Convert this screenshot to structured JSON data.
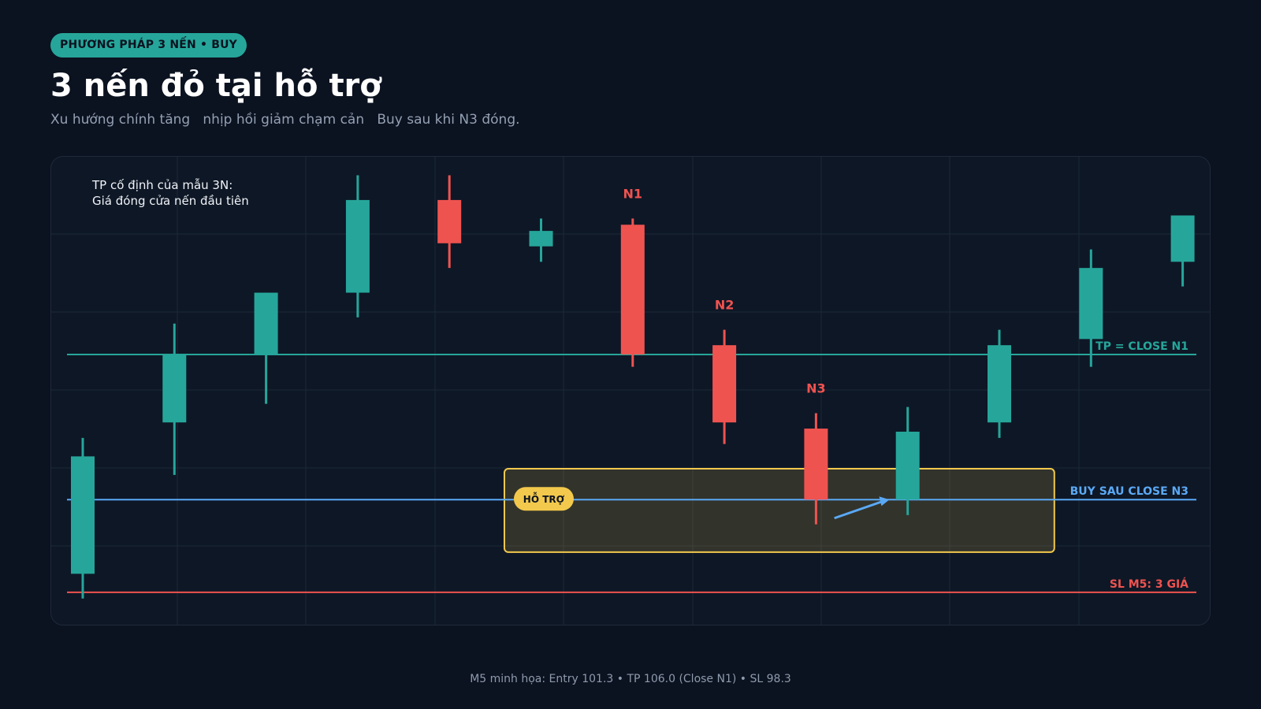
{
  "header": {
    "badge": "PHƯƠNG PHÁP 3 NẾN • BUY",
    "title": "3 nến đỏ tại hỗ trợ",
    "subtitle": "Xu hướng chính tăng   nhịp hồi giảm chạm cản   Buy sau khi N3 đóng."
  },
  "note": {
    "line1": "TP cố định của mẫu 3N:",
    "line2": "Giá đóng cửa nến đầu tiên"
  },
  "footer": "M5 minh họa: Entry 101.3 • TP 106.0 (Close N1) • SL 98.3",
  "colors": {
    "bull": "#26a69a",
    "bear": "#ef5350",
    "entry": "#5aa9f5",
    "support": "#f2c94c",
    "grid": "#1c2838"
  },
  "chart_data": {
    "type": "candlestick",
    "ylim": [
      97.2,
      112.4
    ],
    "grid": true,
    "candles": [
      {
        "open": 98.9,
        "high": 103.3,
        "low": 98.1,
        "close": 102.7
      },
      {
        "open": 103.8,
        "high": 107.0,
        "low": 102.1,
        "close": 106.0
      },
      {
        "open": 106.0,
        "high": 108.0,
        "low": 104.4,
        "close": 108.0
      },
      {
        "open": 108.0,
        "high": 111.8,
        "low": 107.2,
        "close": 111.0
      },
      {
        "open": 111.0,
        "high": 111.8,
        "low": 108.8,
        "close": 109.6
      },
      {
        "open": 109.5,
        "high": 110.4,
        "low": 109.0,
        "close": 110.0
      },
      {
        "open": 110.2,
        "high": 110.4,
        "low": 105.6,
        "close": 106.0,
        "label": "N1"
      },
      {
        "open": 106.3,
        "high": 106.8,
        "low": 103.1,
        "close": 103.8,
        "label": "N2"
      },
      {
        "open": 103.6,
        "high": 104.1,
        "low": 100.5,
        "close": 101.3,
        "label": "N3"
      },
      {
        "open": 101.3,
        "high": 104.3,
        "low": 100.8,
        "close": 103.5
      },
      {
        "open": 103.8,
        "high": 106.8,
        "low": 103.3,
        "close": 106.3
      },
      {
        "open": 106.5,
        "high": 109.4,
        "low": 105.6,
        "close": 108.8
      },
      {
        "open": 109.0,
        "high": 110.4,
        "low": 108.2,
        "close": 110.5
      }
    ],
    "levels": [
      {
        "name": "tp",
        "value": 106.0,
        "label": "TP = CLOSE N1"
      },
      {
        "name": "entry",
        "value": 101.3,
        "label": "BUY SAU CLOSE N3"
      },
      {
        "name": "sl",
        "value": 98.3,
        "label": "SL M5: 3 GIÁ"
      }
    ],
    "support_zone": {
      "low": 99.6,
      "high": 102.3,
      "label": "HỖ TRỢ",
      "from_candle": 4.6,
      "to_candle": 10.6
    },
    "arrow": {
      "from_candle": 8.2,
      "from_value": 100.7,
      "to_candle": 8.8,
      "to_value": 101.3
    }
  }
}
